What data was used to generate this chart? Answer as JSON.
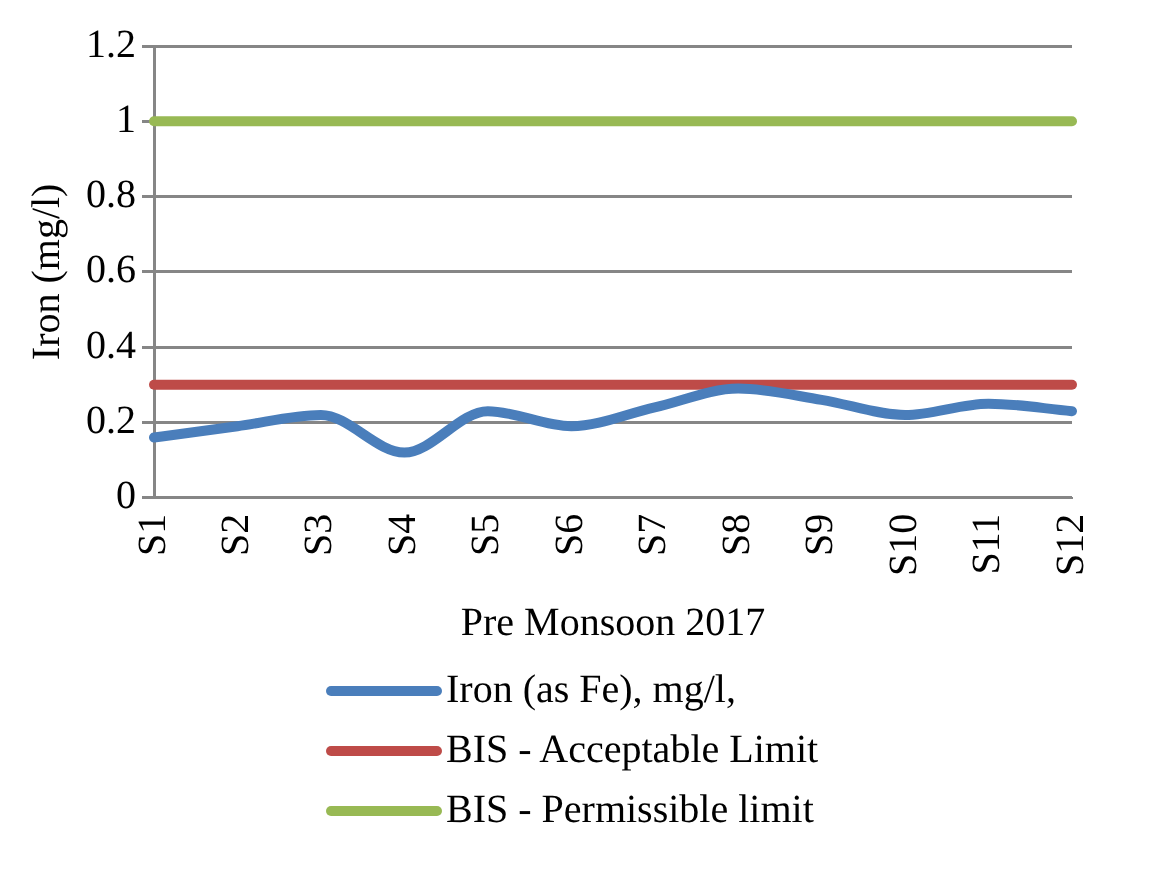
{
  "chart_data": {
    "type": "line",
    "xlabel": "Pre Monsoon 2017",
    "ylabel": "Iron (mg/l)",
    "categories": [
      "S1",
      "S2",
      "S3",
      "S4",
      "S5",
      "S6",
      "S7",
      "S8",
      "S9",
      "S10",
      "S11",
      "S12"
    ],
    "series": [
      {
        "name": "Iron (as Fe), mg/l,",
        "color": "#4a7ebb",
        "values": [
          0.16,
          0.19,
          0.22,
          0.12,
          0.23,
          0.19,
          0.24,
          0.29,
          0.26,
          0.22,
          0.25,
          0.23
        ]
      },
      {
        "name": "BIS - Acceptable Limit",
        "color": "#be4b48",
        "values": [
          0.3,
          0.3,
          0.3,
          0.3,
          0.3,
          0.3,
          0.3,
          0.3,
          0.3,
          0.3,
          0.3,
          0.3
        ]
      },
      {
        "name": "BIS - Permissible limit",
        "color": "#98b954",
        "values": [
          1,
          1,
          1,
          1,
          1,
          1,
          1,
          1,
          1,
          1,
          1,
          1
        ]
      }
    ],
    "ylim": [
      0,
      1.2
    ],
    "yticks": [
      0,
      0.2,
      0.4,
      0.6,
      0.8,
      1,
      1.2
    ],
    "grid": "y",
    "legend": "bottom",
    "marker": "none",
    "line_style": "solid"
  }
}
